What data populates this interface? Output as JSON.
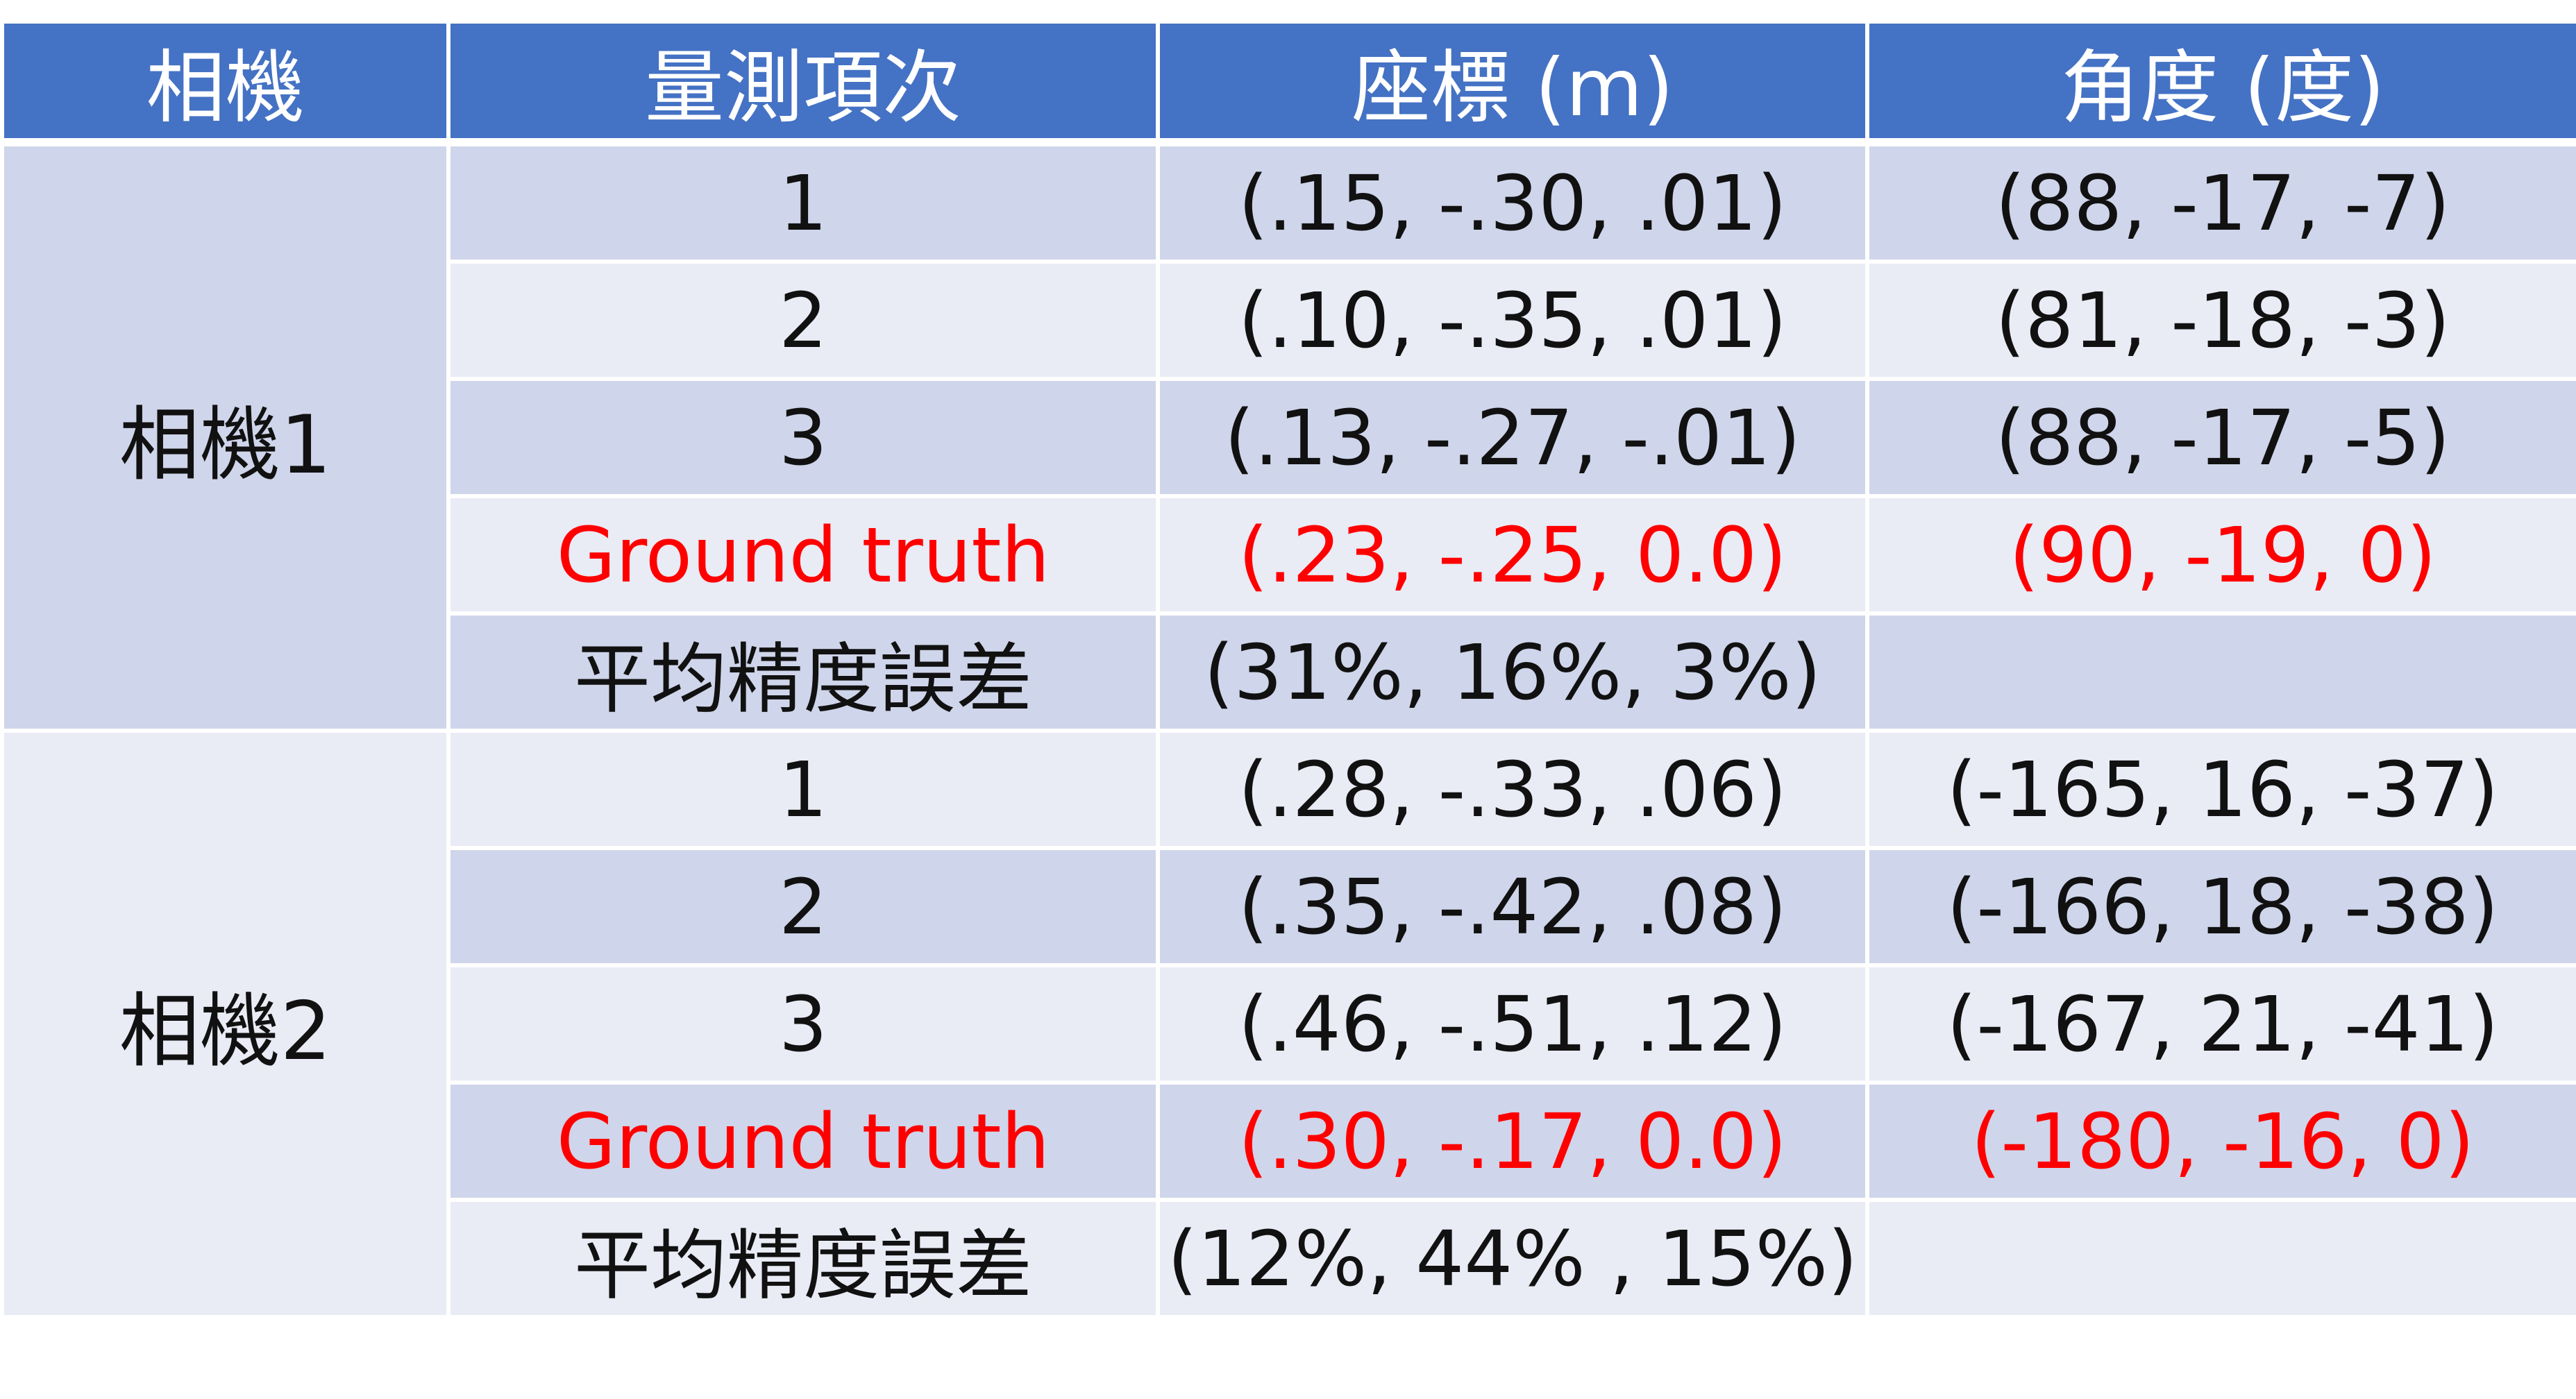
{
  "table": {
    "headers": [
      "相機",
      "量測項次",
      "座標 (m)",
      "角度 (度)"
    ],
    "groups": [
      {
        "camera": "相機1",
        "rows": [
          {
            "item": "1",
            "coord": "(.15, -.30, .01)",
            "angle": "(88, -17, -7)",
            "type": "measurement"
          },
          {
            "item": "2",
            "coord": "(.10, -.35, .01)",
            "angle": "(81, -18, -3)",
            "type": "measurement"
          },
          {
            "item": "3",
            "coord": "(.13, -.27, -.01)",
            "angle": "(88, -17, -5)",
            "type": "measurement"
          },
          {
            "item": "Ground truth",
            "coord": "(.23, -.25, 0.0)",
            "angle": "(90, -19, 0)",
            "type": "ground_truth"
          },
          {
            "item": "平均精度誤差",
            "coord": "(31%, 16%, 3%)",
            "angle": "",
            "type": "error"
          }
        ]
      },
      {
        "camera": "相機2",
        "rows": [
          {
            "item": "1",
            "coord": "(.28, -.33, .06)",
            "angle": "(-165, 16, -37)",
            "type": "measurement"
          },
          {
            "item": "2",
            "coord": "(.35, -.42, .08)",
            "angle": "(-166, 18, -38)",
            "type": "measurement"
          },
          {
            "item": "3",
            "coord": "(.46, -.51, .12)",
            "angle": "(-167, 21, -41)",
            "type": "measurement"
          },
          {
            "item": "Ground truth",
            "coord": "(.30, -.17, 0.0)",
            "angle": "(-180, -16, 0)",
            "type": "ground_truth"
          },
          {
            "item": "平均精度誤差",
            "coord": "(12%, 44% , 15%)",
            "angle": "",
            "type": "error"
          }
        ]
      }
    ]
  },
  "colors": {
    "header_bg": "#4472c4",
    "header_text": "#ffffff",
    "band_dark": "#cfd5ea",
    "band_light": "#e9ebf5",
    "ground_truth_text": "#ff0000",
    "body_text": "#111111"
  }
}
